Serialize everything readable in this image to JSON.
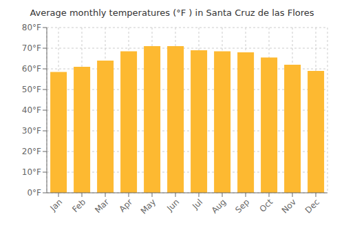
{
  "chart_data": {
    "type": "bar",
    "title": "Average monthly temperatures (°F ) in Santa Cruz de las Flores",
    "categories": [
      "Jan",
      "Feb",
      "Mar",
      "Apr",
      "May",
      "Jun",
      "Jul",
      "Aug",
      "Sep",
      "Oct",
      "Nov",
      "Dec"
    ],
    "values": [
      58.5,
      61,
      64,
      68.5,
      71,
      71,
      69,
      68.5,
      68,
      65.5,
      62,
      59
    ],
    "color": "#FDB931",
    "ylim": [
      0,
      80
    ],
    "yticks": [
      {
        "value": 0,
        "label": "0°F"
      },
      {
        "value": 10,
        "label": "10°F"
      },
      {
        "value": 20,
        "label": "20°F"
      },
      {
        "value": 30,
        "label": "30°F"
      },
      {
        "value": 40,
        "label": "40°F"
      },
      {
        "value": 50,
        "label": "50°F"
      },
      {
        "value": 60,
        "label": "60°F"
      },
      {
        "value": 70,
        "label": "70°F"
      },
      {
        "value": 80,
        "label": "80°F"
      }
    ],
    "grid": true
  }
}
